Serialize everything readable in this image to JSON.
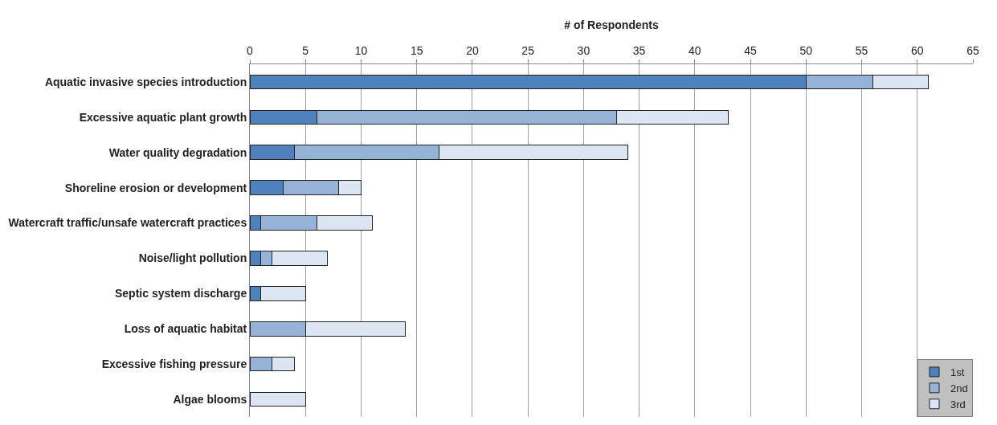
{
  "chart_data": {
    "type": "bar",
    "orientation": "horizontal",
    "stacked": true,
    "xlabel": "# of Respondents",
    "categories": [
      "Aquatic invasive species introduction",
      "Excessive aquatic plant growth",
      "Water quality degradation",
      "Shoreline erosion or development",
      "Watercraft traffic/unsafe watercraft practices",
      "Noise/light pollution",
      "Septic system discharge",
      "Loss of aquatic habitat",
      "Excessive fishing pressure",
      "Algae blooms"
    ],
    "series": [
      {
        "name": "1st",
        "color": "#4f81bd",
        "values": [
          50,
          6,
          4,
          3,
          1,
          1,
          1,
          0,
          0,
          0
        ]
      },
      {
        "name": "2nd",
        "color": "#95b3d7",
        "values": [
          6,
          27,
          13,
          5,
          5,
          1,
          0,
          5,
          2,
          0
        ]
      },
      {
        "name": "3rd",
        "color": "#dce6f2",
        "values": [
          5,
          10,
          17,
          2,
          5,
          5,
          4,
          9,
          2,
          5
        ]
      }
    ],
    "xlim": [
      0,
      65
    ],
    "xticks": [
      0,
      5,
      10,
      15,
      20,
      25,
      30,
      35,
      40,
      45,
      50,
      55,
      60,
      65
    ],
    "grid": "x",
    "legend": "bottom right"
  }
}
